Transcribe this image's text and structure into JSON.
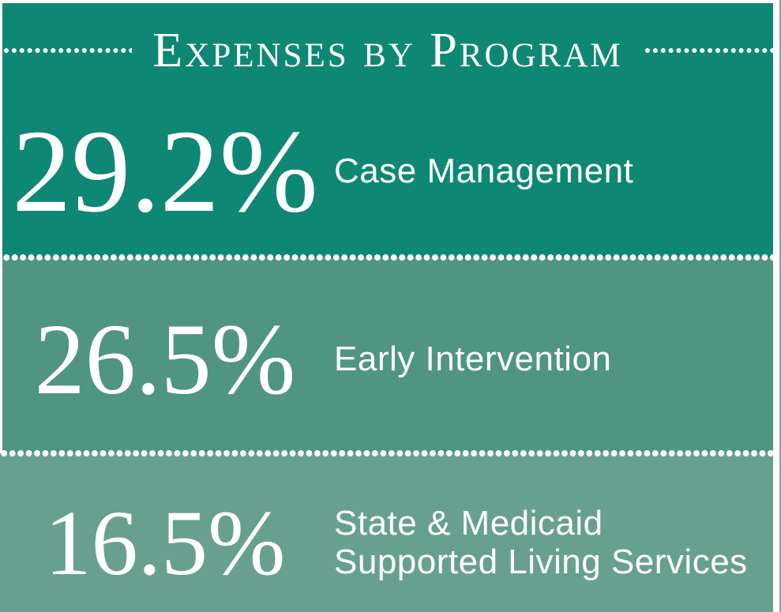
{
  "header": {
    "title": "Expenses by Program"
  },
  "sections": [
    {
      "percent": "29.2%",
      "label_lines": [
        "Case Management"
      ]
    },
    {
      "percent": "26.5%",
      "label_lines": [
        "Early Intervention"
      ]
    },
    {
      "percent": "16.5%",
      "label_lines": [
        "State & Medicaid",
        "Supported Living Services"
      ]
    }
  ],
  "colors": {
    "section1_bg": "#0E8874",
    "section2_bg": "#4F9582",
    "section3_bg": "#68A090",
    "text": "#FFFFFF",
    "edge_line": "#9C9C9C"
  },
  "chart_data": {
    "type": "bar",
    "title": "Expenses by Program",
    "categories": [
      "Case Management",
      "Early Intervention",
      "State & Medicaid Supported Living Services"
    ],
    "values": [
      29.2,
      26.5,
      16.5
    ],
    "unit": "%",
    "colors": [
      "#0E8874",
      "#4F9582",
      "#68A090"
    ],
    "legend_position": "none",
    "grid": false
  }
}
